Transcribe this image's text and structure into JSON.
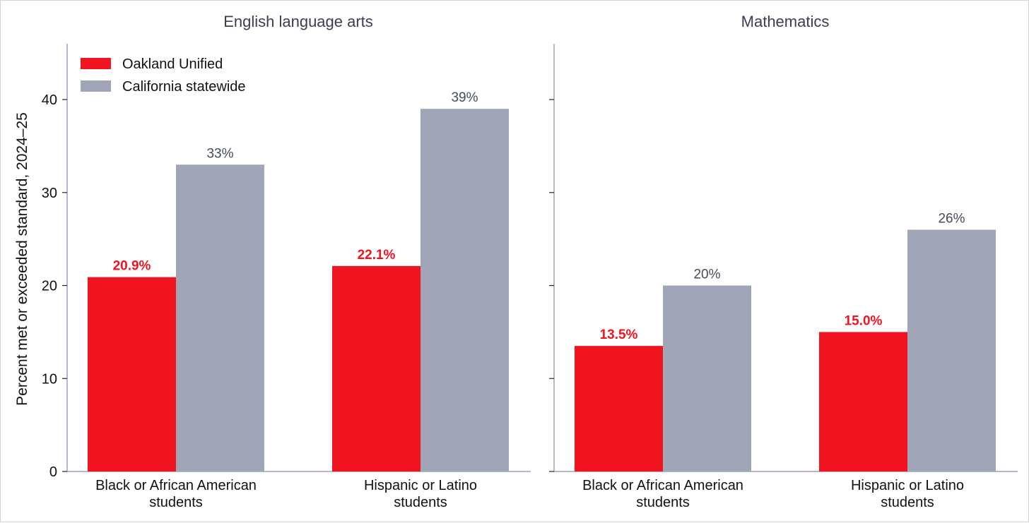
{
  "colors": {
    "oakland": "#ef141f",
    "california": "#a0a6b7",
    "axis": "#9aa0b8",
    "title_text": "#3a3f4f"
  },
  "chart_data": {
    "type": "bar",
    "ylabel": "Percent met or exceeded standard, 2024–25",
    "ylim": [
      0,
      46
    ],
    "yticks": [
      0,
      10,
      20,
      30,
      40
    ],
    "ytick_labels": [
      "0",
      "10",
      "20",
      "30",
      "40"
    ],
    "legend": {
      "placement": "top-left",
      "entries": [
        "Oakland Unified",
        "California statewide"
      ]
    },
    "categories": [
      [
        "Black or African American",
        "students"
      ],
      [
        "Hispanic or Latino",
        "students"
      ]
    ],
    "panels": [
      {
        "title": "English language arts",
        "series": [
          {
            "name": "Oakland Unified",
            "values": [
              20.9,
              22.1
            ],
            "labels": [
              "20.9%",
              "22.1%"
            ]
          },
          {
            "name": "California statewide",
            "values": [
              33,
              39
            ],
            "labels": [
              "33%",
              "39%"
            ]
          }
        ]
      },
      {
        "title": "Mathematics",
        "series": [
          {
            "name": "Oakland Unified",
            "values": [
              13.5,
              15.0
            ],
            "labels": [
              "13.5%",
              "15.0%"
            ]
          },
          {
            "name": "California statewide",
            "values": [
              20,
              26
            ],
            "labels": [
              "20%",
              "26%"
            ]
          }
        ]
      }
    ],
    "grid": false
  }
}
